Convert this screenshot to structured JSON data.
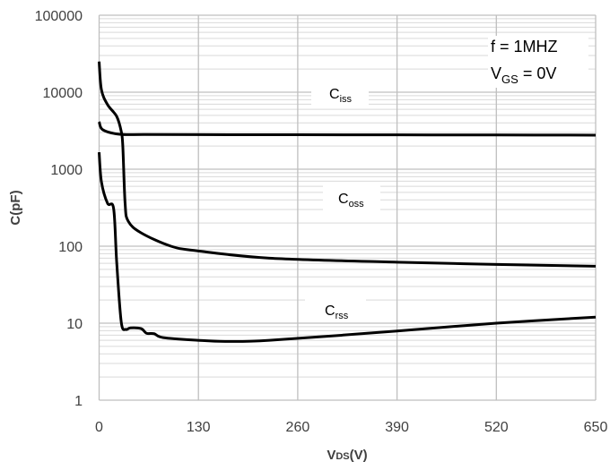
{
  "chart_data": {
    "type": "line",
    "title": "",
    "xlabel": "VDS(V)",
    "xlabel_main": "V",
    "xlabel_sub": "DS",
    "xlabel_unit": "(V)",
    "ylabel": "C(pF)",
    "xlim": [
      0,
      650
    ],
    "ylim": [
      1,
      100000
    ],
    "yscale": "log",
    "grid": true,
    "x_ticks": [
      "0",
      "130",
      "260",
      "390",
      "520",
      "650"
    ],
    "y_ticks": [
      "1",
      "10",
      "100",
      "1000",
      "10000",
      "100000"
    ],
    "annotation": {
      "line1": "f = 1MHZ",
      "line2_main": "V",
      "line2_sub": "GS",
      "line2_rest": " = 0V"
    },
    "line_color": "#000000",
    "series": [
      {
        "name": "Ciss",
        "label_main": "C",
        "label_sub": "iss",
        "x": [
          0,
          5,
          27,
          60,
          130,
          260,
          390,
          520,
          650
        ],
        "y": [
          4130,
          3240,
          2840,
          2820,
          2810,
          2800,
          2790,
          2780,
          2770
        ]
      },
      {
        "name": "Coss",
        "label_main": "C",
        "label_sub": "oss",
        "x": [
          0,
          3,
          11,
          23,
          29,
          31,
          34,
          38,
          55,
          94,
          129,
          223,
          390,
          520,
          650
        ],
        "y": [
          25000,
          10800,
          6900,
          4850,
          3080,
          2000,
          361,
          212,
          149,
          100,
          87,
          70,
          62,
          58,
          55
        ]
      },
      {
        "name": "Crss",
        "label_main": "C",
        "label_sub": "rss",
        "x": [
          0,
          3,
          11,
          19,
          23,
          29,
          35,
          41,
          55,
          62,
          72,
          84,
          129,
          165,
          223,
          390,
          520,
          650
        ],
        "y": [
          1660,
          687,
          361,
          307,
          62,
          10.3,
          8.3,
          8.7,
          8.5,
          7.4,
          7.3,
          6.5,
          6.0,
          5.8,
          6.0,
          7.9,
          10,
          12
        ]
      }
    ]
  }
}
